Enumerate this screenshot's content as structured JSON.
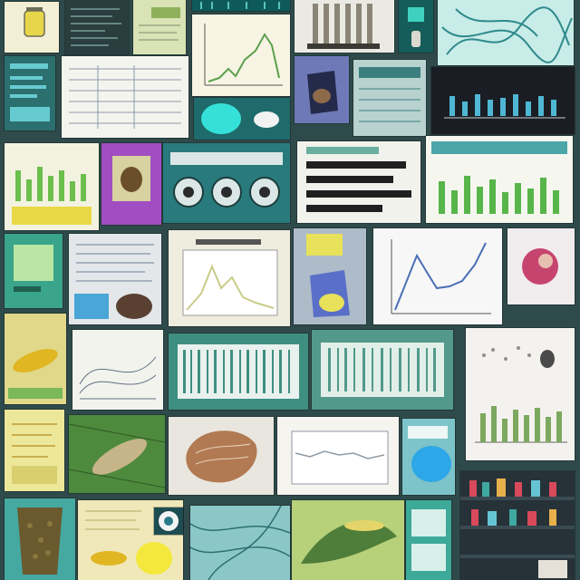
{
  "tiles": [
    {
      "key": "t01",
      "kind": "specimen-jar",
      "bg": "#f3efd6",
      "accent": "#e8d64a"
    },
    {
      "key": "t02",
      "kind": "dark-data-panel",
      "bg": "#2a3d3f",
      "accent": "#9fd0c6"
    },
    {
      "key": "t03",
      "kind": "green-document",
      "bg": "#d9e3b5",
      "accent": "#8fb05a"
    },
    {
      "key": "t04",
      "kind": "teal-strip",
      "bg": "#0e5a5a",
      "accent": "#59c3b5"
    },
    {
      "key": "t05",
      "kind": "peak-line-chart",
      "bg": "#f7f4e4",
      "accent": "#5aa04a"
    },
    {
      "key": "t06",
      "kind": "striped-specimen",
      "bg": "#eaeae3",
      "accent": "#8a8577"
    },
    {
      "key": "t07",
      "kind": "teal-screen",
      "bg": "#145d5a",
      "accent": "#3fd1c0"
    },
    {
      "key": "t08",
      "kind": "microscope-fibers",
      "bg": "#c8ece8",
      "accent": "#2f8a8c"
    },
    {
      "key": "t09",
      "kind": "cyan-report",
      "bg": "#2b6f6e",
      "accent": "#66cbd0"
    },
    {
      "key": "t10",
      "kind": "spreadsheet-doc",
      "bg": "#f4f4ee",
      "accent": "#8b9aa8"
    },
    {
      "key": "t11",
      "kind": "specimen-jar-blue",
      "bg": "#6e7ab8",
      "accent": "#242a4a"
    },
    {
      "key": "t12",
      "kind": "teal-table",
      "bg": "#b8d2d0",
      "accent": "#3b7f7e"
    },
    {
      "key": "t13",
      "kind": "dark-bar-chart",
      "bg": "#1a1e24",
      "accent": "#4fb7d4"
    },
    {
      "key": "t14",
      "kind": "cyan-disc",
      "bg": "#1f6a6a",
      "accent": "#35e0d9"
    },
    {
      "key": "t15",
      "kind": "green-bar-chart",
      "bg": "#f3f2e0",
      "accent": "#6bbf4c"
    },
    {
      "key": "t16",
      "kind": "specimen-photo",
      "bg": "#a04ec2",
      "accent": "#6b4f2a"
    },
    {
      "key": "t17",
      "kind": "petri-dishes",
      "bg": "#297a7c",
      "accent": "#dbe7e6"
    },
    {
      "key": "t18",
      "kind": "dark-bars",
      "bg": "#f2f2ec",
      "accent": "#202020"
    },
    {
      "key": "t19",
      "kind": "green-bar-chart-large",
      "bg": "#f5f7ef",
      "accent": "#58b54a"
    },
    {
      "key": "t20",
      "kind": "green-panel",
      "bg": "#3aa58a",
      "accent": "#b9e6a4"
    },
    {
      "key": "t21",
      "kind": "text-document",
      "bg": "#e3e7ea",
      "accent": "#6e7f95"
    },
    {
      "key": "t22",
      "kind": "peak-line-chart-soft",
      "bg": "#efedde",
      "accent": "#c9cc88"
    },
    {
      "key": "t23",
      "kind": "lemon-specimen",
      "bg": "#aebbc9",
      "accent": "#e8e15a"
    },
    {
      "key": "t24",
      "kind": "blue-line-chart",
      "bg": "#f7f7f7",
      "accent": "#4a6fb5"
    },
    {
      "key": "t25",
      "kind": "red-sphere",
      "bg": "#f1ecee",
      "accent": "#c6456f"
    },
    {
      "key": "t26",
      "kind": "yellow-larva",
      "bg": "#e1d88a",
      "accent": "#e0b623"
    },
    {
      "key": "t27",
      "kind": "sketch-diagram",
      "bg": "#f3f3ee",
      "accent": "#607080"
    },
    {
      "key": "t28",
      "kind": "teal-barcode-panel",
      "bg": "#3f8f80",
      "accent": "#e8f1ee"
    },
    {
      "key": "t29",
      "kind": "teal-barcode-panel-2",
      "bg": "#52998b",
      "accent": "#e2efe9"
    },
    {
      "key": "t30",
      "kind": "scatter-bar-doc",
      "bg": "#f4f2ee",
      "accent": "#7da85f"
    },
    {
      "key": "t31",
      "kind": "yellow-notes",
      "bg": "#ede79a",
      "accent": "#bf9b32"
    },
    {
      "key": "t32",
      "kind": "green-leaf-larva",
      "bg": "#4e8a3e",
      "accent": "#c7b58a"
    },
    {
      "key": "t33",
      "kind": "brown-specimen",
      "bg": "#e9e6df",
      "accent": "#b27a52"
    },
    {
      "key": "t34",
      "kind": "table-chart",
      "bg": "#f6f4ef",
      "accent": "#909aa2"
    },
    {
      "key": "t35",
      "kind": "blue-blob",
      "bg": "#7cc4c9",
      "accent": "#2ea7e8"
    },
    {
      "key": "t36",
      "kind": "shelves",
      "bg": "#263238",
      "accent": "#d84a5b"
    },
    {
      "key": "t37",
      "kind": "mossy-cup",
      "bg": "#45a9a1",
      "accent": "#6a5a2e"
    },
    {
      "key": "t38",
      "kind": "yellow-sheet",
      "bg": "#f0e8b8",
      "accent": "#f4e83c"
    },
    {
      "key": "t39",
      "kind": "teal-leaf-map",
      "bg": "#8cc7c7",
      "accent": "#2b6f72"
    },
    {
      "key": "t40",
      "kind": "olive-leaf",
      "bg": "#b7d07a",
      "accent": "#4f7e3a"
    },
    {
      "key": "t41",
      "kind": "teal-sheet",
      "bg": "#3da999",
      "accent": "#d7f0ea"
    }
  ]
}
